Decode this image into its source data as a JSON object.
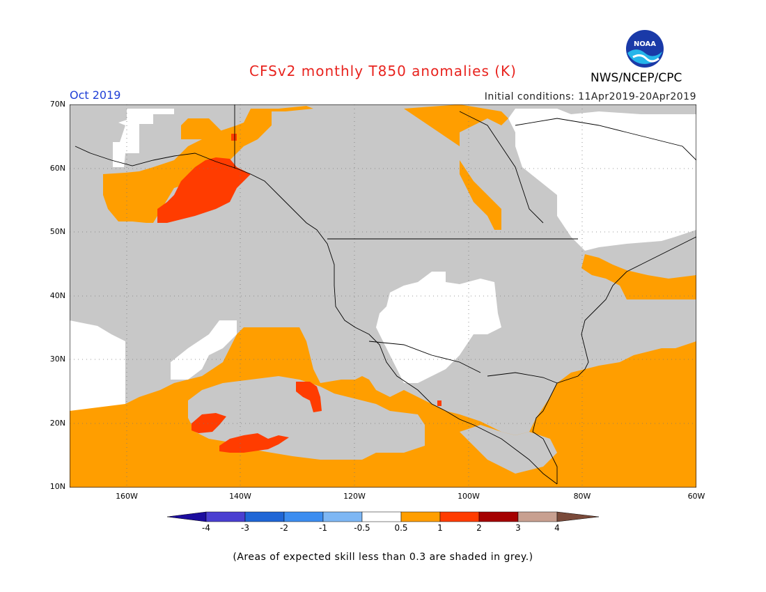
{
  "title": "CFSv2 monthly T850 anomalies (K)",
  "month": "Oct 2019",
  "initial_conditions": "Initial conditions: 11Apr2019-20Apr2019",
  "agency": "NWS/NCEP/CPC",
  "logo_text": "NOAA",
  "footnote": "(Areas of expected skill less than 0.3 are shaded in grey.)",
  "lat_labels": [
    "70N",
    "60N",
    "50N",
    "40N",
    "30N",
    "20N",
    "10N"
  ],
  "lon_labels": [
    "160W",
    "140W",
    "120W",
    "100W",
    "80W",
    "60W"
  ],
  "colorbar": {
    "labels": [
      "-4",
      "-3",
      "-2",
      "-1",
      "-0.5",
      "0.5",
      "1",
      "2",
      "3",
      "4"
    ],
    "colors": [
      "#1c0d9e",
      "#4a3fd1",
      "#1f66d6",
      "#3c8df0",
      "#7eb7f4",
      "#ffffff",
      "#ff9e00",
      "#ff3c00",
      "#a50000",
      "#c8a090",
      "#7a4a3a"
    ]
  },
  "colors": {
    "skill_grey": "#c8c8c8",
    "anom_0_5_1": "#ff9e00",
    "anom_1_2": "#ff3c00",
    "title_red": "#e8231e",
    "month_blue": "#1f3fd6"
  }
}
